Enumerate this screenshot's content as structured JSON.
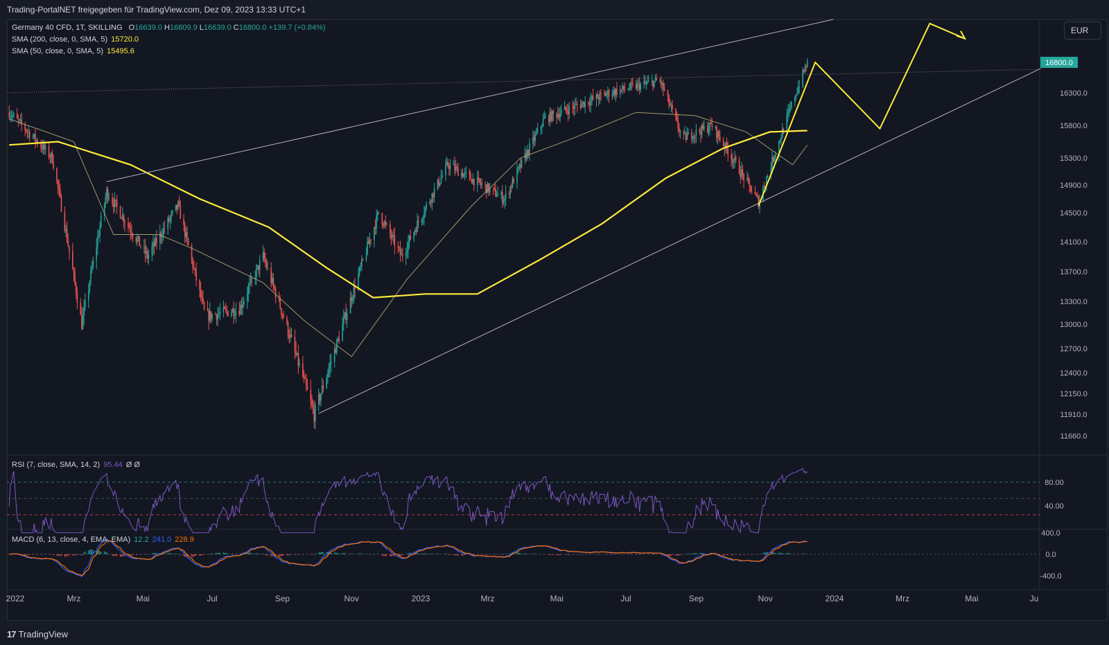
{
  "header": {
    "title": "Trading-PortalNET freigegeben für TradingView.com, Dez 09, 2023 13:33 UTC+1"
  },
  "currency_button": "EUR",
  "legend": {
    "symbol": "Germany 40 CFD, 1T, SKILLING",
    "o_label": "O",
    "o": "16639.0",
    "h_label": "H",
    "h": "16809.9",
    "l_label": "L",
    "l": "16639.0",
    "c_label": "C",
    "c": "16800.0",
    "change": "+139.7 (+0.84%)",
    "sma200_label": "SMA (200, close, 0, SMA, 5)",
    "sma200_value": "15720.0",
    "sma50_label": "SMA (50, close, 0, SMA, 5)",
    "sma50_value": "15495.6"
  },
  "rsi_legend": {
    "label": "RSI (7, close, SMA, 14, 2)",
    "value": "95.44",
    "extra": "Ø  Ø"
  },
  "macd_legend": {
    "label": "MACD (6, 13, close, 4, EMA, EMA)",
    "v1": "12.2",
    "v2": "241.0",
    "v3": "228.9"
  },
  "footer": {
    "brand": "TradingView"
  },
  "colors": {
    "up": "#26a69a",
    "down": "#ef5350",
    "sma200": "#ffeb3b",
    "sma50": "#a09a6a",
    "rsi": "#7e57c2",
    "macd": "#2962ff",
    "signal": "#ff6d00",
    "drawing": "#ffeb3b"
  },
  "chart_data": {
    "type": "candlestick",
    "title": "Germany 40 CFD, 1T, SKILLING",
    "price_axis": {
      "ticks": [
        16300.0,
        15800.0,
        15300.0,
        14900.0,
        14500.0,
        14100.0,
        13700.0,
        13300.0,
        13000.0,
        12700.0,
        12400.0,
        12150.0,
        11910.0,
        11660.0
      ],
      "current_price": 16800.0
    },
    "time_axis": {
      "labels": [
        "2022",
        "Mrz",
        "Mai",
        "Jul",
        "Sep",
        "Nov",
        "2023",
        "Mrz",
        "Mai",
        "Jul",
        "Sep",
        "Nov",
        "2024",
        "Mrz",
        "Mai",
        "Ju"
      ]
    },
    "price_path": [
      [
        "2022-01",
        16000
      ],
      [
        "2022-01-20",
        15700
      ],
      [
        "2022-02-10",
        15300
      ],
      [
        "2022-03-08",
        13000
      ],
      [
        "2022-03-30",
        14800
      ],
      [
        "2022-05-05",
        13900
      ],
      [
        "2022-06-01",
        14600
      ],
      [
        "2022-06-25",
        13100
      ],
      [
        "2022-07-25",
        13200
      ],
      [
        "2022-08-15",
        13900
      ],
      [
        "2022-09-29",
        11900
      ],
      [
        "2022-10-20",
        12800
      ],
      [
        "2022-11-25",
        14500
      ],
      [
        "2022-12-15",
        13900
      ],
      [
        "2023-01-25",
        15200
      ],
      [
        "2023-03-16",
        14700
      ],
      [
        "2023-04-20",
        15900
      ],
      [
        "2023-06-16",
        16300
      ],
      [
        "2023-07-31",
        16500
      ],
      [
        "2023-08-20",
        15600
      ],
      [
        "2023-09-15",
        15800
      ],
      [
        "2023-10-26",
        14650
      ],
      [
        "2023-11-20",
        15900
      ],
      [
        "2023-12-08",
        16800
      ]
    ],
    "sma200_path": [
      [
        "2022-01",
        15500
      ],
      [
        "2022-02-15",
        15550
      ],
      [
        "2022-04-20",
        15200
      ],
      [
        "2022-06-20",
        14700
      ],
      [
        "2022-08-20",
        14300
      ],
      [
        "2022-10-10",
        13750
      ],
      [
        "2022-11-20",
        13350
      ],
      [
        "2023-01-05",
        13400
      ],
      [
        "2023-02-20",
        13400
      ],
      [
        "2023-04-15",
        13850
      ],
      [
        "2023-06-10",
        14350
      ],
      [
        "2023-08-05",
        15000
      ],
      [
        "2023-09-25",
        15450
      ],
      [
        "2023-11-05",
        15700
      ],
      [
        "2023-12-08",
        15720
      ]
    ],
    "sma50_path": [
      [
        "2022-01",
        15900
      ],
      [
        "2022-03-01",
        15550
      ],
      [
        "2022-04-05",
        14200
      ],
      [
        "2022-05-15",
        14200
      ],
      [
        "2022-06-15",
        14000
      ],
      [
        "2022-08-15",
        13550
      ],
      [
        "2022-09-20",
        13050
      ],
      [
        "2022-11-01",
        12600
      ],
      [
        "2022-12-20",
        13600
      ],
      [
        "2023-02-15",
        14600
      ],
      [
        "2023-03-30",
        15300
      ],
      [
        "2023-05-15",
        15600
      ],
      [
        "2023-07-10",
        16000
      ],
      [
        "2023-08-31",
        15950
      ],
      [
        "2023-10-15",
        15700
      ],
      [
        "2023-11-25",
        15200
      ],
      [
        "2023-12-08",
        15495.6
      ]
    ],
    "rsi": {
      "levels": [
        80.0,
        40.0
      ],
      "last": 95.44
    },
    "macd": {
      "ticks": [
        400.0,
        0.0,
        -400.0
      ],
      "macd": 12.2,
      "signal": 241.0,
      "hist": 228.9
    },
    "drawings": {
      "upper_trendline": [
        [
          "2022-03-30",
          14950
        ],
        [
          "2023-12-31",
          17850
        ]
      ],
      "lower_trendline": [
        [
          "2022-10-03",
          11920
        ],
        [
          "2024-07-01",
          16700
        ]
      ],
      "projection_zigzag": [
        [
          "2023-10-26",
          14600
        ],
        [
          "2023-12-15",
          16800
        ],
        [
          "2024-02-10",
          15750
        ],
        [
          "2024-03-25",
          17750
        ],
        [
          "2024-04-25",
          17380
        ]
      ],
      "horizontal_dotted": 16800.0
    }
  }
}
